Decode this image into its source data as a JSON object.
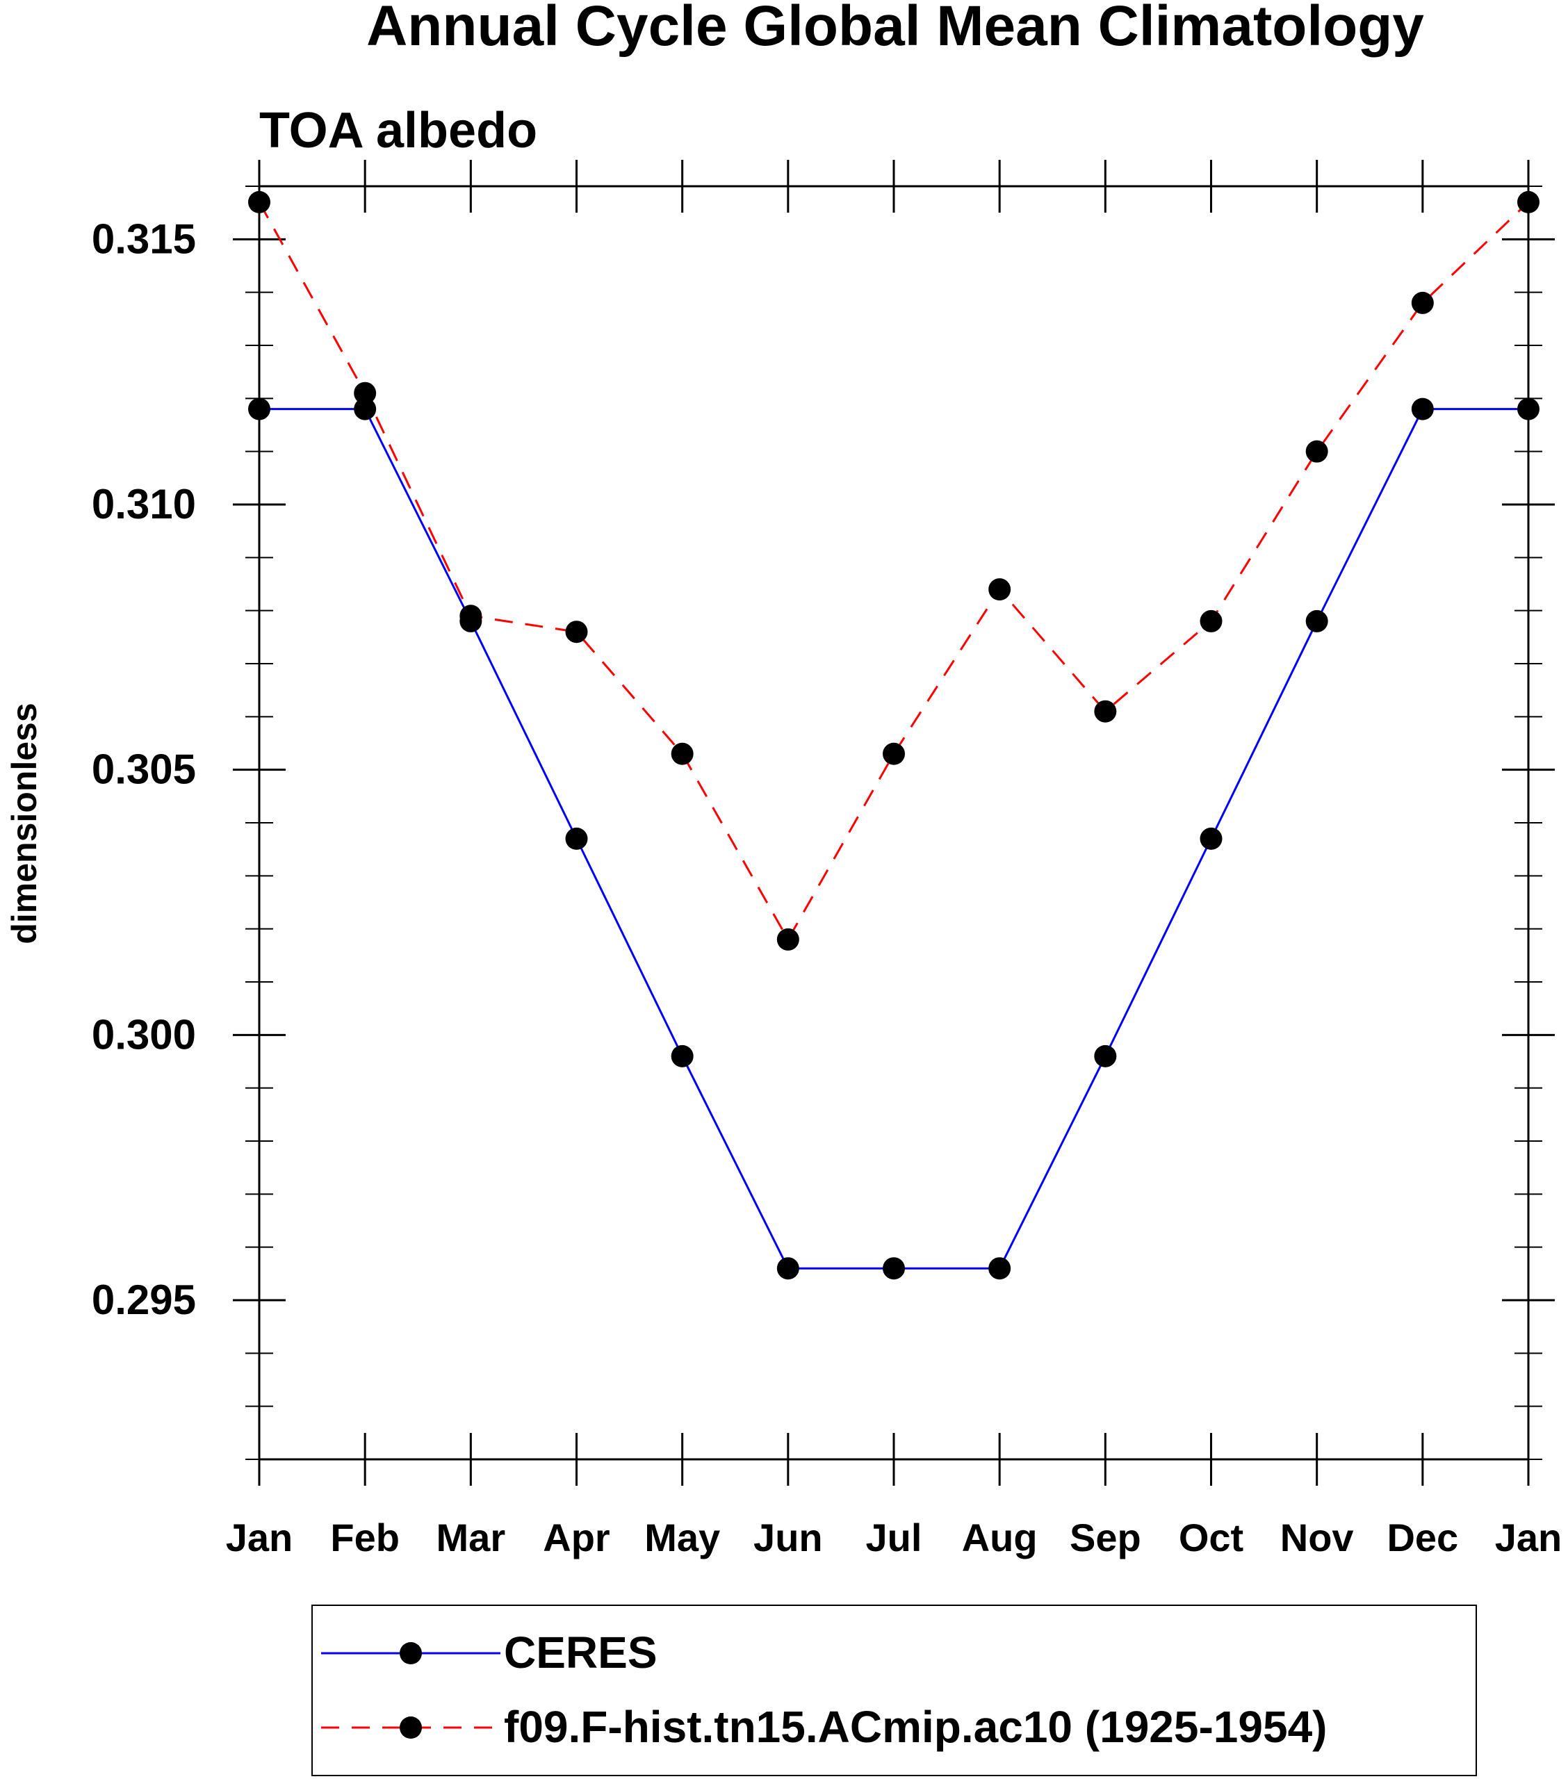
{
  "chart_data": {
    "type": "line",
    "title": "Annual Cycle Global Mean Climatology",
    "subtitle": "TOA albedo",
    "xlabel": "",
    "ylabel": "dimensionless",
    "categories": [
      "Jan",
      "Feb",
      "Mar",
      "Apr",
      "May",
      "Jun",
      "Jul",
      "Aug",
      "Sep",
      "Oct",
      "Nov",
      "Dec",
      "Jan"
    ],
    "ylim": [
      0.292,
      0.316
    ],
    "yticks": [
      "0.295",
      "0.300",
      "0.305",
      "0.310",
      "0.315"
    ],
    "grid": false,
    "legend_position": "bottom",
    "series": [
      {
        "name": "CERES",
        "color": "#0000ff",
        "line_style": "solid",
        "marker": "filled-circle",
        "values": [
          0.3118,
          0.3118,
          0.3078,
          0.3037,
          0.2996,
          0.2956,
          0.2956,
          0.2956,
          0.2996,
          0.3037,
          0.3078,
          0.3118,
          0.3118
        ]
      },
      {
        "name": "f09.F-hist.tn15.ACmip.ac10 (1925-1954)",
        "color": "#ff0000",
        "line_style": "dashed",
        "marker": "filled-circle",
        "values": [
          0.3157,
          0.3121,
          0.3079,
          0.3076,
          0.3053,
          0.3018,
          0.3053,
          0.3084,
          0.3061,
          0.3078,
          0.311,
          0.3138,
          0.3157
        ]
      }
    ]
  }
}
